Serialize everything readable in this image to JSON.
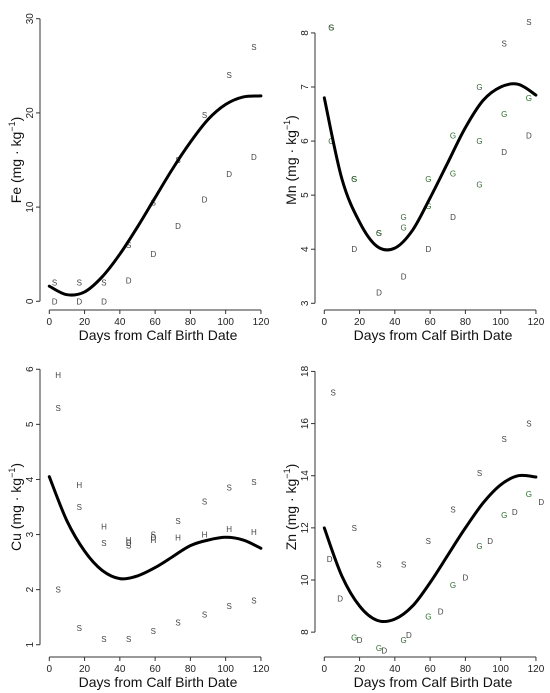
{
  "chart_data": [
    {
      "type": "scatter",
      "id": "fe",
      "ylabel": {
        "main": "Fe (mg · kg",
        "sup": "−1",
        "close": ")"
      },
      "xlabel": "Days from Calf Birth Date",
      "xlim": [
        -3,
        124
      ],
      "ylim": [
        -0.5,
        30.5
      ],
      "xticks": [
        0,
        20,
        40,
        60,
        80,
        100,
        120
      ],
      "yticks": [
        0,
        10,
        20,
        30
      ],
      "grid": false,
      "series": [
        {
          "label": "S",
          "color": "#444444",
          "points": [
            [
              3,
              2
            ],
            [
              17,
              2
            ],
            [
              31,
              2
            ],
            [
              45,
              6
            ],
            [
              59,
              10.5
            ],
            [
              73,
              15
            ],
            [
              88,
              19.8
            ],
            [
              102,
              24
            ],
            [
              116,
              27
            ]
          ]
        },
        {
          "label": "D",
          "color": "#444444",
          "points": [
            [
              3,
              0
            ],
            [
              17,
              0
            ],
            [
              31,
              0
            ],
            [
              45,
              2.2
            ],
            [
              59,
              5
            ],
            [
              73,
              8
            ],
            [
              88,
              10.8
            ],
            [
              102,
              13.5
            ],
            [
              116,
              15.3
            ]
          ]
        }
      ],
      "fit_curve": {
        "x": [
          0,
          10,
          20,
          30,
          40,
          50,
          60,
          70,
          80,
          90,
          100,
          110,
          120
        ],
        "y": [
          1.6,
          0.7,
          1.0,
          2.6,
          5.0,
          7.9,
          11.0,
          14.1,
          16.9,
          19.3,
          20.9,
          21.7,
          21.8
        ]
      }
    },
    {
      "type": "scatter",
      "id": "mn",
      "ylabel": {
        "main": "Mn (mg · kg",
        "sup": "−1",
        "close": ")"
      },
      "xlabel": "Days from Calf Birth Date",
      "xlim": [
        -3,
        124
      ],
      "ylim": [
        2.95,
        8.35
      ],
      "xticks": [
        0,
        20,
        40,
        60,
        80,
        100,
        120
      ],
      "yticks": [
        3,
        4,
        5,
        6,
        7,
        8
      ],
      "grid": false,
      "series": [
        {
          "label": "S",
          "color": "#444444",
          "points": [
            [
              4,
              8.1
            ],
            [
              17,
              5.3
            ],
            [
              31,
              4.3
            ],
            [
              102,
              7.8
            ],
            [
              116,
              8.2
            ]
          ]
        },
        {
          "label": "G",
          "color": "#2f6b2f",
          "points": [
            [
              4,
              8.1
            ],
            [
              17,
              5.3
            ],
            [
              31,
              4.3
            ],
            [
              45,
              4.6
            ],
            [
              59,
              5.3
            ],
            [
              73,
              6.1
            ],
            [
              88,
              7.0
            ],
            [
              116,
              6.8
            ],
            [
              4,
              6.0
            ],
            [
              45,
              4.4
            ],
            [
              59,
              4.8
            ],
            [
              73,
              5.4
            ],
            [
              88,
              6.0
            ],
            [
              102,
              6.5
            ],
            [
              88,
              5.2
            ]
          ]
        },
        {
          "label": "D",
          "color": "#444444",
          "points": [
            [
              17,
              4.0
            ],
            [
              31,
              3.2
            ],
            [
              45,
              3.5
            ],
            [
              59,
              4.0
            ],
            [
              73,
              4.6
            ],
            [
              102,
              5.8
            ],
            [
              116,
              6.1
            ]
          ]
        }
      ],
      "fit_curve": {
        "x": [
          0,
          10,
          20,
          30,
          40,
          50,
          60,
          70,
          80,
          90,
          100,
          110,
          120
        ],
        "y": [
          6.8,
          5.3,
          4.5,
          4.05,
          4.02,
          4.35,
          4.95,
          5.6,
          6.25,
          6.75,
          7.0,
          7.05,
          6.85
        ]
      }
    },
    {
      "type": "scatter",
      "id": "cu",
      "ylabel": {
        "main": "Cu (mg · kg",
        "sup": "−1",
        "close": ")"
      },
      "xlabel": "Days from Calf Birth Date",
      "xlim": [
        -3,
        124
      ],
      "ylim": [
        0.85,
        6.15
      ],
      "xticks": [
        0,
        20,
        40,
        60,
        80,
        100,
        120
      ],
      "yticks": [
        1,
        2,
        3,
        4,
        5,
        6
      ],
      "grid": false,
      "series": [
        {
          "label": "H",
          "color": "#444444",
          "points": [
            [
              5,
              5.9
            ],
            [
              17,
              3.9
            ],
            [
              31,
              3.15
            ],
            [
              45,
              2.9
            ],
            [
              59,
              2.9
            ],
            [
              73,
              2.95
            ],
            [
              88,
              3.0
            ],
            [
              102,
              3.1
            ],
            [
              116,
              3.05
            ]
          ]
        },
        {
          "label": "S",
          "color": "#444444",
          "points": [
            [
              5,
              5.3
            ],
            [
              5,
              2.0
            ],
            [
              17,
              3.5
            ],
            [
              17,
              1.3
            ],
            [
              31,
              2.85
            ],
            [
              31,
              1.1
            ],
            [
              45,
              2.8
            ],
            [
              45,
              1.1
            ],
            [
              59,
              3.0
            ],
            [
              59,
              1.25
            ],
            [
              73,
              3.25
            ],
            [
              73,
              1.4
            ],
            [
              88,
              3.6
            ],
            [
              88,
              1.55
            ],
            [
              102,
              3.85
            ],
            [
              102,
              1.7
            ],
            [
              116,
              3.95
            ],
            [
              116,
              1.8
            ]
          ]
        },
        {
          "label": "D",
          "color": "#444444",
          "points": [
            [
              45,
              2.85
            ],
            [
              59,
              2.95
            ]
          ]
        }
      ],
      "fit_curve": {
        "x": [
          0,
          10,
          20,
          30,
          40,
          50,
          60,
          70,
          80,
          90,
          100,
          110,
          120
        ],
        "y": [
          4.05,
          3.25,
          2.7,
          2.35,
          2.2,
          2.25,
          2.4,
          2.6,
          2.8,
          2.9,
          2.95,
          2.9,
          2.75
        ]
      }
    },
    {
      "type": "scatter",
      "id": "zn",
      "ylabel": {
        "main": "Zn (mg · kg",
        "sup": "−1",
        "close": ")"
      },
      "xlabel": "Days from Calf Birth Date",
      "xlim": [
        -3,
        124
      ],
      "ylim": [
        7.2,
        18.4
      ],
      "xticks": [
        0,
        20,
        40,
        60,
        80,
        100,
        120
      ],
      "yticks": [
        8,
        10,
        12,
        14,
        16,
        18
      ],
      "grid": false,
      "series": [
        {
          "label": "S",
          "color": "#444444",
          "points": [
            [
              5,
              17.2
            ],
            [
              17,
              12.0
            ],
            [
              31,
              10.6
            ],
            [
              45,
              10.6
            ],
            [
              59,
              11.5
            ],
            [
              73,
              12.7
            ],
            [
              88,
              14.1
            ],
            [
              102,
              15.4
            ],
            [
              116,
              16.0
            ]
          ]
        },
        {
          "label": "D",
          "color": "#444444",
          "points": [
            [
              3,
              10.8
            ],
            [
              9,
              9.3
            ],
            [
              20,
              7.7
            ],
            [
              34,
              7.3
            ],
            [
              48,
              7.9
            ],
            [
              66,
              8.8
            ],
            [
              80,
              10.1
            ],
            [
              94,
              11.5
            ],
            [
              108,
              12.6
            ],
            [
              123,
              13.0
            ]
          ]
        },
        {
          "label": "G",
          "color": "#2f6b2f",
          "points": [
            [
              17,
              7.8
            ],
            [
              31,
              7.4
            ],
            [
              45,
              7.7
            ],
            [
              59,
              8.6
            ],
            [
              73,
              9.8
            ],
            [
              88,
              11.3
            ],
            [
              102,
              12.5
            ],
            [
              116,
              13.3
            ]
          ]
        }
      ],
      "fit_curve": {
        "x": [
          0,
          10,
          20,
          30,
          40,
          50,
          60,
          70,
          80,
          90,
          100,
          110,
          120
        ],
        "y": [
          12.0,
          10.15,
          9.0,
          8.45,
          8.5,
          9.0,
          9.9,
          10.95,
          12.0,
          12.95,
          13.65,
          14.0,
          13.95
        ]
      }
    }
  ]
}
